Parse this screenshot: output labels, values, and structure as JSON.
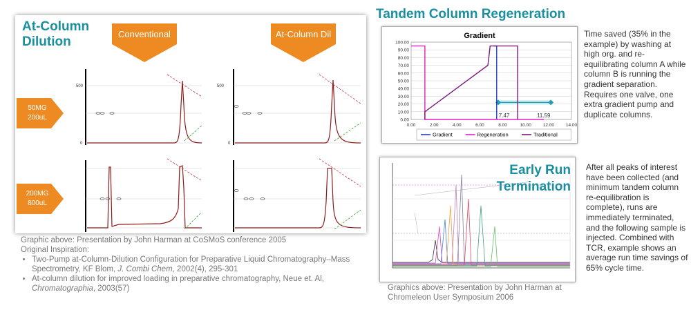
{
  "left": {
    "title": "At-Column Dilution",
    "arrow_conventional": "Conventional",
    "arrow_acd": "At-Column Dil",
    "row1_label_a": "50MG",
    "row1_label_b": "200uL",
    "row2_label_a": "200MG",
    "row2_label_b": "800uL",
    "axis_top": "500",
    "axis_zero": "0"
  },
  "caption_left": {
    "line1": "Graphic above: Presentation by John Harman at CoSMoS conference 2005",
    "line2": "Original Inspiration:",
    "ref1_a": "Two-Pump at-Column-Dilution Configuration for Preparative Liquid Chromatography–Mass Spectrometry, KF Blom, ",
    "ref1_journal": "J. Combi Chem",
    "ref1_b": ", 2002(4), 295-301",
    "ref2_a": "At-column dilution for improved loading in preparative chromatography, Neue et. Al, ",
    "ref2_journal": "Chromatographia",
    "ref2_b": ", 2003(57)"
  },
  "tcr": {
    "title": "Tandem Column Regeneration",
    "description": "Time saved (35% in the example) by washing at high org. and re-equilibrating column A while column B is running the gradient separation. Requires one valve, one extra gradient pump and duplicate columns."
  },
  "chart_data": {
    "type": "line",
    "title": "Gradient",
    "xlim": [
      0,
      14
    ],
    "ylim": [
      0,
      100
    ],
    "x_ticks": [
      "0.00",
      "2.00",
      "4.00",
      "6.00",
      "8.00",
      "10.00",
      "12.00",
      "14.00"
    ],
    "y_ticks": [
      "0.00",
      "10.00",
      "20.00",
      "30.00",
      "40.00",
      "50.00",
      "60.00",
      "70.00",
      "80.00",
      "90.00",
      "100.00"
    ],
    "series": [
      {
        "name": "Gradient",
        "color": "#1f3fcf",
        "x": [
          7.2,
          7.47,
          7.47
        ],
        "y": [
          95,
          95,
          0
        ]
      },
      {
        "name": "Regeneration",
        "color": "#e020c0",
        "x": [
          0,
          1.2,
          1.2,
          11.59
        ],
        "y": [
          95,
          95,
          0,
          0
        ]
      },
      {
        "name": "Traditional",
        "color": "#7a1a7a",
        "x": [
          1.2,
          1.2,
          6.7,
          6.9,
          9.3,
          9.3
        ],
        "y": [
          0,
          10,
          70,
          95,
          95,
          0
        ]
      }
    ],
    "annotations": [
      "7.47",
      "11.59"
    ],
    "span": {
      "x_start": 7.6,
      "x_end": 12.2,
      "y": 22,
      "color": "#20a0b0"
    }
  },
  "ert": {
    "title": "Early Run Termination",
    "description": "After all peaks of interest have been collected (and minimum tandem column re-equilibration is complete), runs are immediately terminated, and the following sample is injected. Combined with TCR, example shows an average run time savings of 65% cycle time.",
    "caption": "Graphics above: Presentation by John Harman at Chromeleon User Symposium 2006"
  }
}
